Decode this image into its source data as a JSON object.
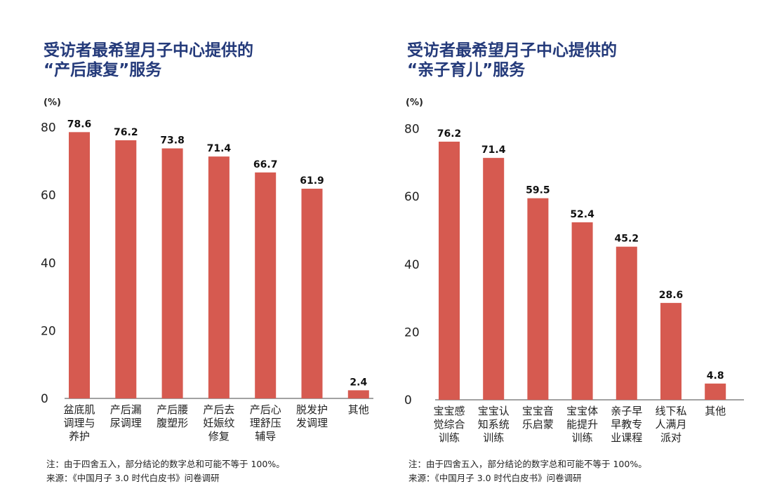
{
  "colors": {
    "bar": "#d65a50",
    "title": "#243a7a",
    "axis": "#444444"
  },
  "chart_data": [
    {
      "type": "bar",
      "title_line1": "受访者最希望月子中心提供的",
      "title_line2": "“产后康复”服务",
      "unit_label": "(%)",
      "yticks": [
        "0",
        "20",
        "40",
        "60",
        "80"
      ],
      "ylim": [
        0,
        80
      ],
      "categories": [
        [
          "盆底肌",
          "调理与",
          "养护"
        ],
        [
          "产后漏",
          "尿调理"
        ],
        [
          "产后腰",
          "腹塑形"
        ],
        [
          "产后去",
          "妊娠纹",
          "修复"
        ],
        [
          "产后心",
          "理舒压",
          "辅导"
        ],
        [
          "脱发护",
          "发调理"
        ],
        [
          "其他"
        ]
      ],
      "values": [
        78.6,
        76.2,
        73.8,
        71.4,
        66.7,
        61.9,
        2.4
      ],
      "value_labels": [
        "78.6",
        "76.2",
        "73.8",
        "71.4",
        "66.7",
        "61.9",
        "2.4"
      ],
      "note_line1": "注：由于四舍五入，部分结论的数字总和可能不等于 100%。",
      "note_line2": "来源：《中国月子 3.0 时代白皮书》问卷调研"
    },
    {
      "type": "bar",
      "title_line1": "受访者最希望月子中心提供的",
      "title_line2": "“亲子育儿”服务",
      "unit_label": "(%)",
      "yticks": [
        "0",
        "20",
        "40",
        "60",
        "80"
      ],
      "ylim": [
        0,
        80
      ],
      "categories": [
        [
          "宝宝感",
          "觉综合",
          "训练"
        ],
        [
          "宝宝认",
          "知系统",
          "训练"
        ],
        [
          "宝宝音",
          "乐启蒙"
        ],
        [
          "宝宝体",
          "能提升",
          "训练"
        ],
        [
          "亲子早",
          "早教专",
          "业课程"
        ],
        [
          "线下私",
          "人满月",
          "派对"
        ],
        [
          "其他"
        ]
      ],
      "values": [
        76.2,
        71.4,
        59.5,
        52.4,
        45.2,
        28.6,
        4.8
      ],
      "value_labels": [
        "76.2",
        "71.4",
        "59.5",
        "52.4",
        "45.2",
        "28.6",
        "4.8"
      ],
      "note_line1": "注：由于四舍五入，部分结论的数字总和可能不等于 100%。",
      "note_line2": "来源：《中国月子 3.0 时代白皮书》问卷调研"
    }
  ]
}
